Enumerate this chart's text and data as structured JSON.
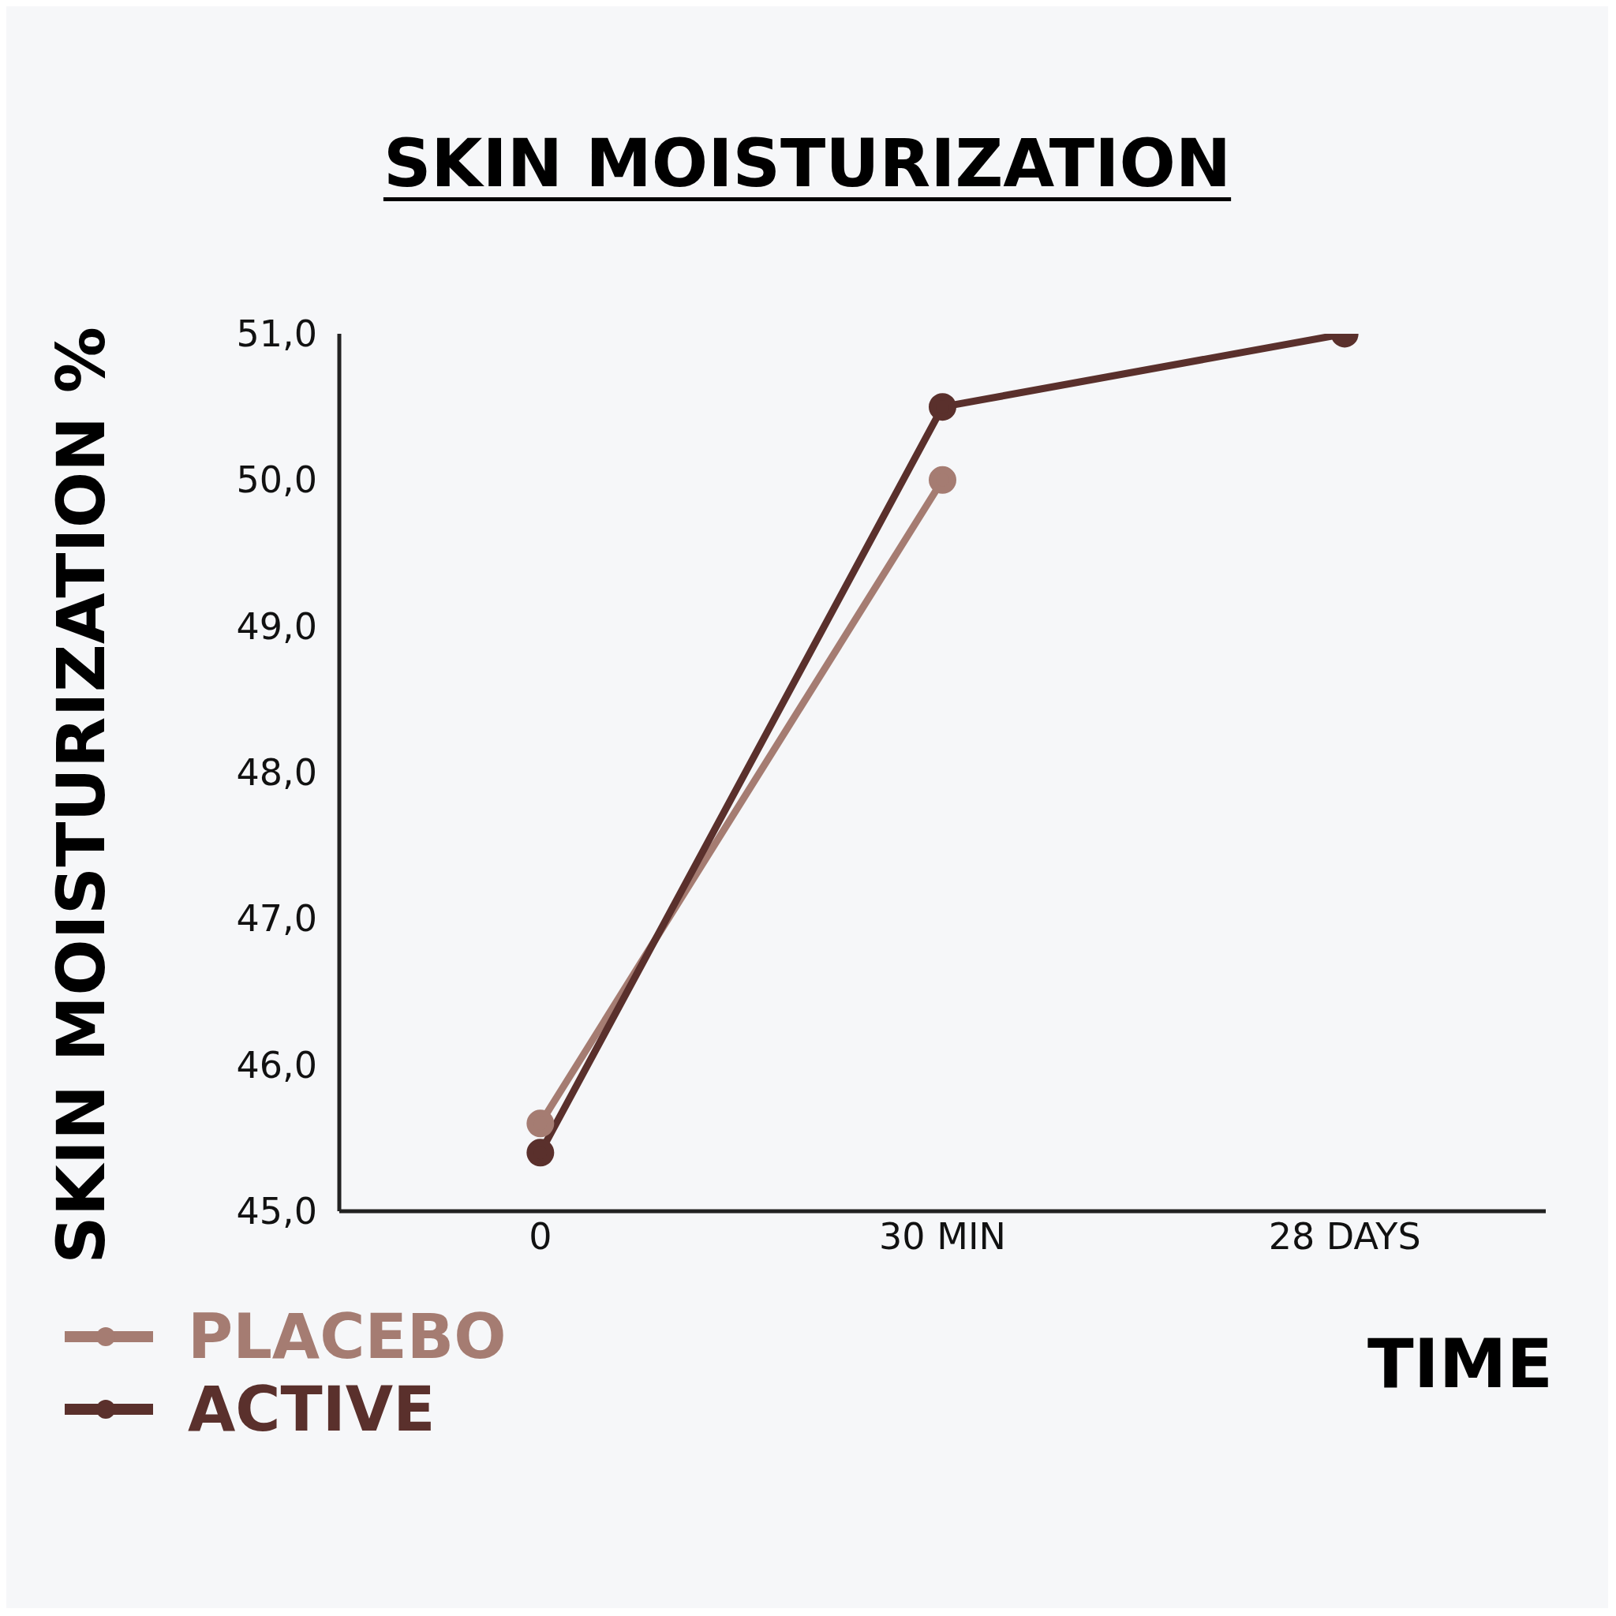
{
  "chart_data": {
    "type": "line",
    "title": "SKIN MOISTURIZATION",
    "xlabel": "TIME",
    "ylabel": "SKIN MOISTURIZATION %",
    "categories": [
      "0",
      "30 MIN",
      "28 DAYS"
    ],
    "series": [
      {
        "name": "PLACEBO",
        "color": "#a57c72",
        "values": [
          45.6,
          50.0,
          null
        ]
      },
      {
        "name": "ACTIVE",
        "color": "#5a302c",
        "values": [
          45.4,
          50.5,
          51.0
        ]
      }
    ],
    "ylim": [
      45,
      51
    ],
    "yticks": [
      {
        "value": 45,
        "label": "45,0"
      },
      {
        "value": 46,
        "label": "46,0"
      },
      {
        "value": 47,
        "label": "47,0"
      },
      {
        "value": 48,
        "label": "48,0"
      },
      {
        "value": 49,
        "label": "49,0"
      },
      {
        "value": 50,
        "label": "50,0"
      },
      {
        "value": 51,
        "label": "51,0"
      }
    ],
    "marker": "circle",
    "grid": false,
    "legend": "bottom left"
  }
}
